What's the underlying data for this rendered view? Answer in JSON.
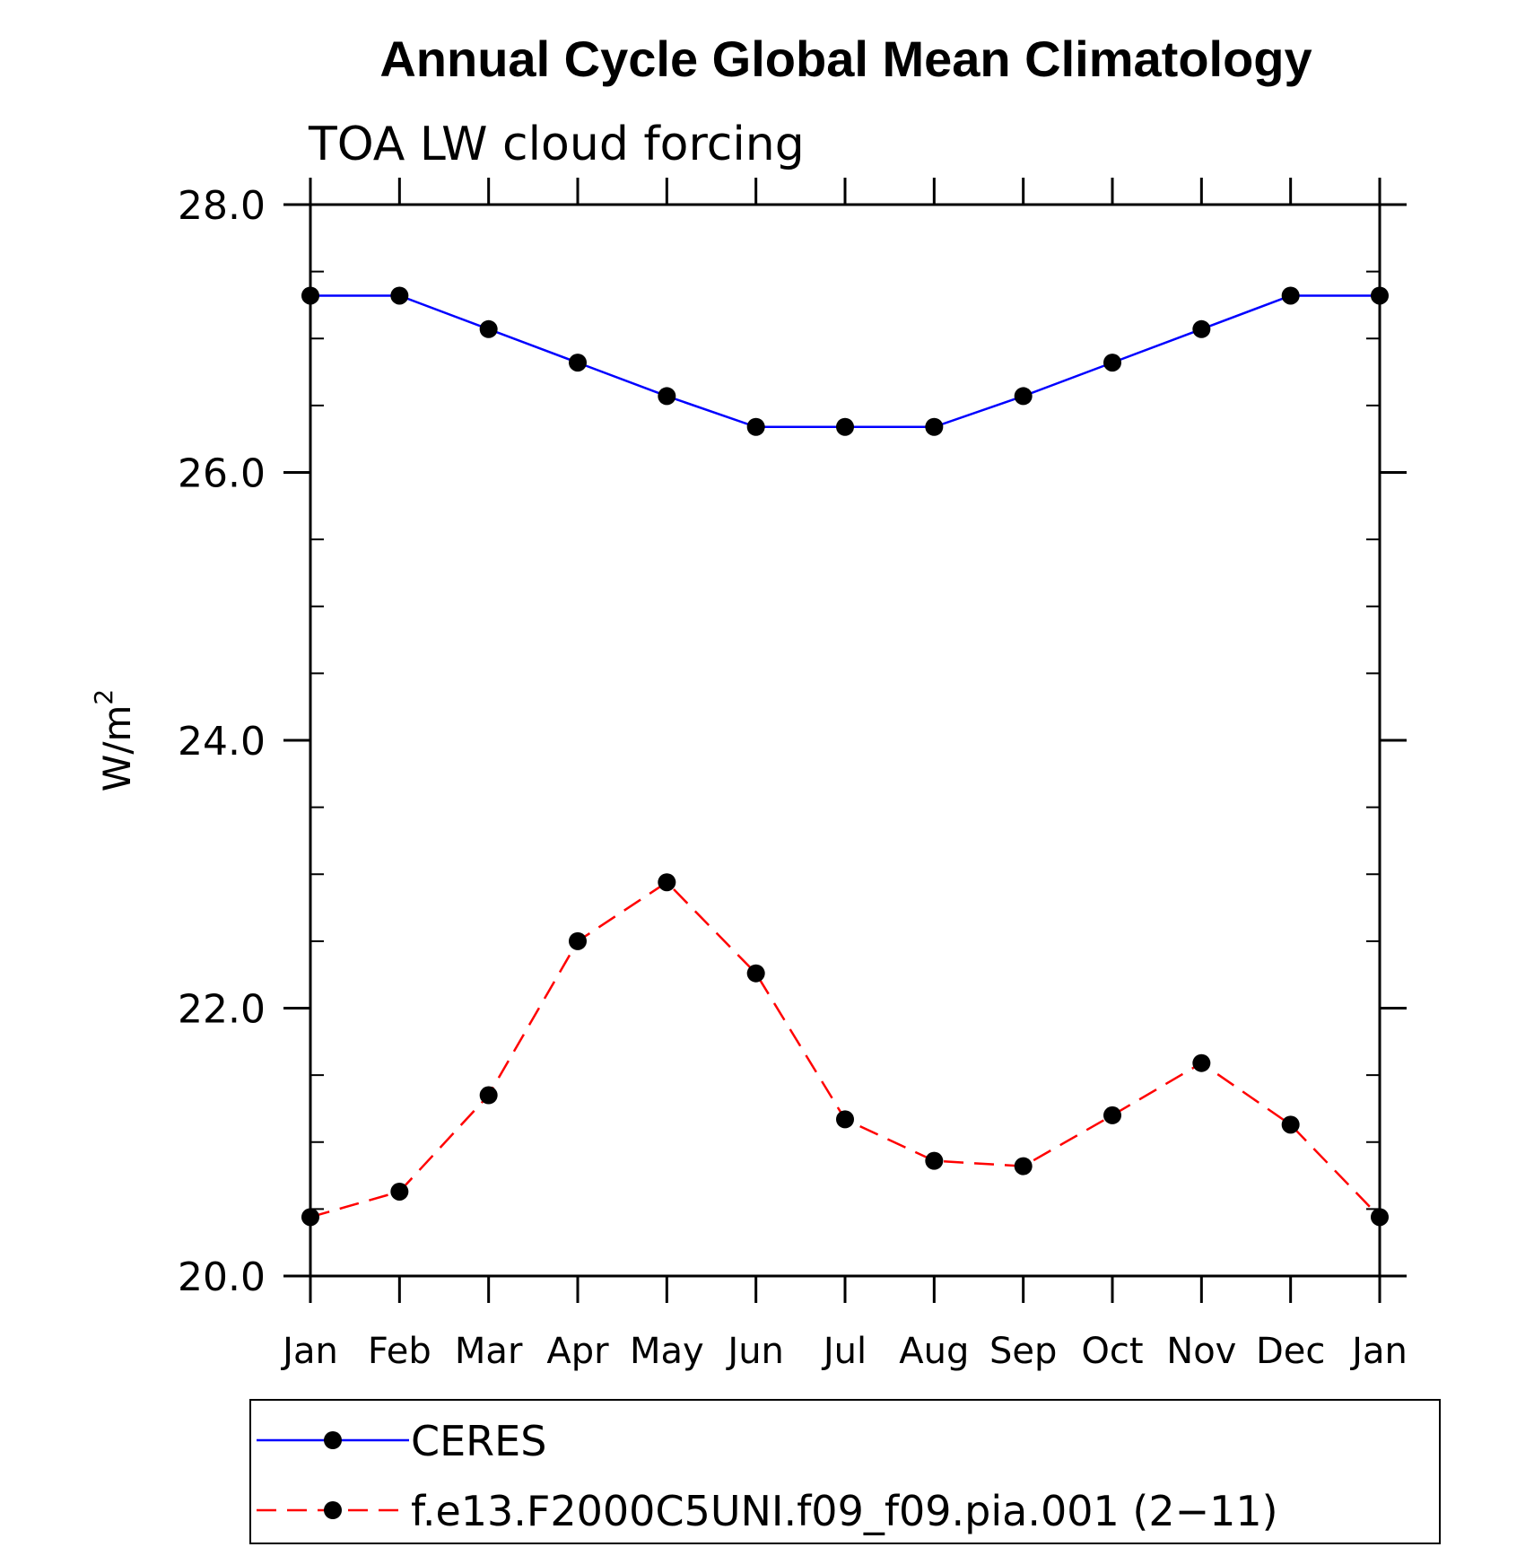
{
  "chart_data": {
    "type": "line",
    "title": "Annual Cycle Global Mean Climatology",
    "subtitle": "TOA LW cloud forcing",
    "xlabel": "",
    "ylabel": "W/m",
    "ylabel_superscript": "2",
    "categories": [
      "Jan",
      "Feb",
      "Mar",
      "Apr",
      "May",
      "Jun",
      "Jul",
      "Aug",
      "Sep",
      "Oct",
      "Nov",
      "Dec",
      "Jan"
    ],
    "ylim": [
      20.0,
      28.0
    ],
    "yticks": [
      "20.0",
      "22.0",
      "24.0",
      "26.0",
      "28.0"
    ],
    "legend_position": "bottom",
    "series": [
      {
        "name": "CERES",
        "color": "#0000ff",
        "dash": "solid",
        "values": [
          27.32,
          27.32,
          27.07,
          26.82,
          26.57,
          26.34,
          26.34,
          26.34,
          26.57,
          26.82,
          27.07,
          27.32,
          27.32
        ]
      },
      {
        "name": "f.e13.F2000C5UNI.f09_f09.pia.001 (2−11)",
        "color": "#ff0000",
        "dash": "dashed",
        "values": [
          20.44,
          20.63,
          21.35,
          22.5,
          22.94,
          22.26,
          21.17,
          20.86,
          20.82,
          21.2,
          21.59,
          21.13,
          20.44
        ]
      }
    ]
  }
}
